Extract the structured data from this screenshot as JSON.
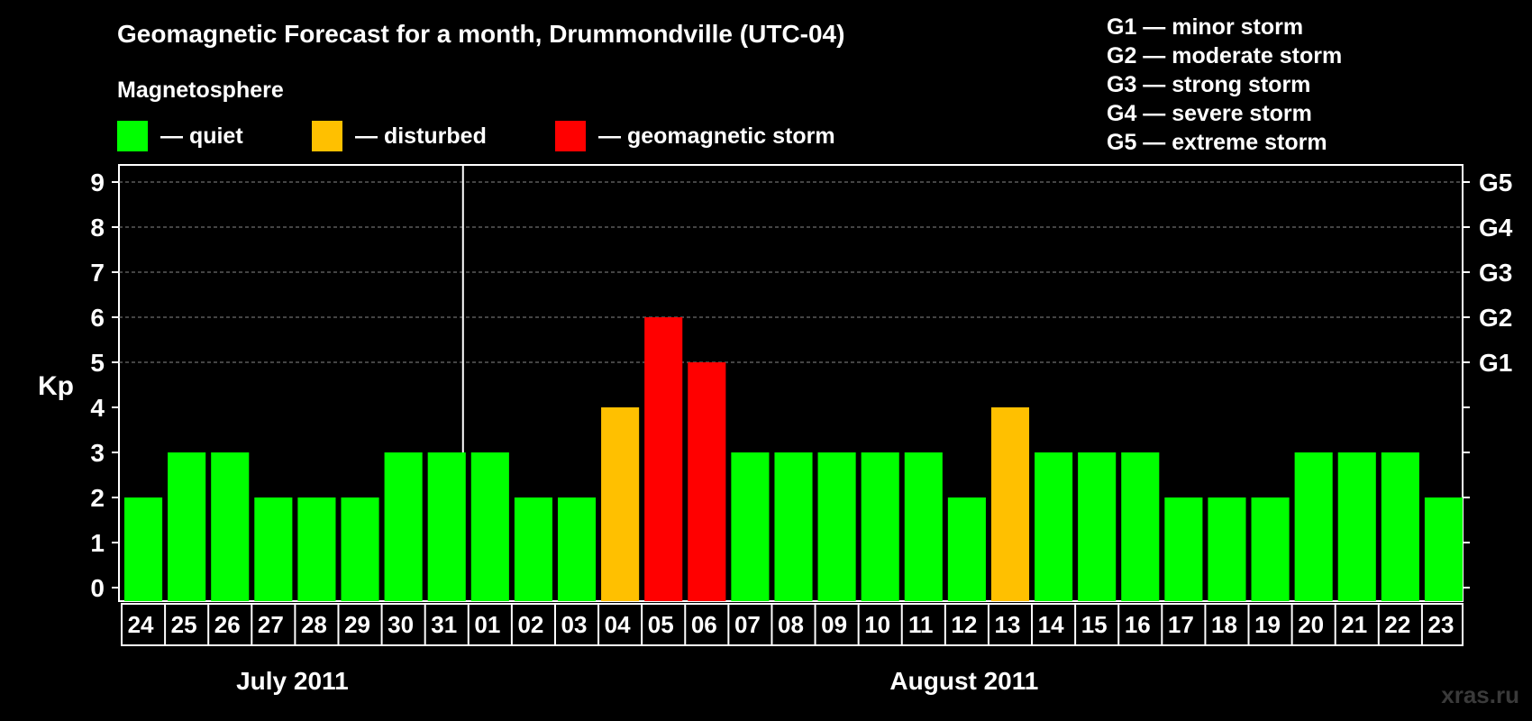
{
  "title": "Geomagnetic Forecast for a month, Drummondville (UTC-04)",
  "legend": {
    "heading": "Magnetosphere",
    "items": [
      {
        "label": "— quiet",
        "color": "#00ff00"
      },
      {
        "label": "— disturbed",
        "color": "#ffc000"
      },
      {
        "label": "— geomagnetic storm",
        "color": "#ff0000"
      }
    ]
  },
  "storm_scale": [
    "G1 — minor storm",
    "G2 — moderate storm",
    "G3 — strong storm",
    "G4 — severe storm",
    "G5 — extreme storm"
  ],
  "watermark": "xras.ru",
  "chart_data": {
    "type": "bar",
    "title": "Geomagnetic Forecast for a month, Drummondville (UTC-04)",
    "ylabel": "Kp",
    "ylim": [
      0,
      9
    ],
    "y_ticks": [
      "0",
      "1",
      "2",
      "3",
      "4",
      "5",
      "6",
      "7",
      "8",
      "9"
    ],
    "right_axis_labels": [
      {
        "value": 5,
        "label": "G1"
      },
      {
        "value": 6,
        "label": "G2"
      },
      {
        "value": 7,
        "label": "G3"
      },
      {
        "value": 8,
        "label": "G4"
      },
      {
        "value": 9,
        "label": "G5"
      }
    ],
    "categories": [
      "24",
      "25",
      "26",
      "27",
      "28",
      "29",
      "30",
      "31",
      "01",
      "02",
      "03",
      "04",
      "05",
      "06",
      "07",
      "08",
      "09",
      "10",
      "11",
      "12",
      "13",
      "14",
      "15",
      "16",
      "17",
      "18",
      "19",
      "20",
      "21",
      "22",
      "23"
    ],
    "values": [
      2,
      3,
      3,
      2,
      2,
      2,
      3,
      3,
      3,
      2,
      2,
      4,
      6,
      5,
      3,
      3,
      3,
      3,
      3,
      2,
      4,
      3,
      3,
      3,
      2,
      2,
      2,
      3,
      3,
      3,
      2
    ],
    "colors": {
      "quiet": "#00ff00",
      "disturbed": "#ffc000",
      "storm": "#ff0000"
    },
    "months": [
      {
        "label": "July 2011",
        "start": 0,
        "end": 7
      },
      {
        "label": "August 2011",
        "start": 8,
        "end": 30
      }
    ],
    "grid": true
  }
}
